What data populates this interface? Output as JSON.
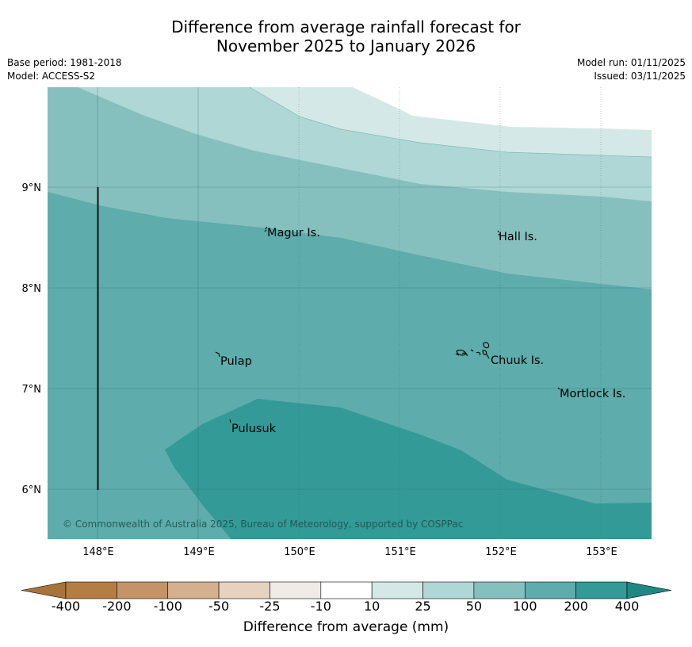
{
  "title": {
    "line1": "Difference from average rainfall forecast for",
    "line2": "November 2025 to January 2026"
  },
  "info_left": {
    "base_period": "Base period: 1981-2018",
    "model": "Model: ACCESS-S2"
  },
  "info_right": {
    "model_run": "Model run: 01/11/2025",
    "issued": "Issued: 03/11/2025"
  },
  "axes": {
    "x_ticks": [
      "148°E",
      "149°E",
      "150°E",
      "151°E",
      "152°E",
      "153°E"
    ],
    "y_ticks": [
      "9°N",
      "8°N",
      "7°N",
      "6°N"
    ]
  },
  "islands": [
    {
      "name": "Magur Is.",
      "lon": 149.67,
      "lat": 8.56
    },
    {
      "name": "Hall Is.",
      "lon": 151.97,
      "lat": 8.52
    },
    {
      "name": "Pulap",
      "lon": 149.18,
      "lat": 7.27
    },
    {
      "name": "Chuuk Is.",
      "lon": 151.85,
      "lat": 7.28
    },
    {
      "name": "Mortlock Is.",
      "lon": 152.58,
      "lat": 6.98
    },
    {
      "name": "Pulusuk",
      "lon": 149.3,
      "lat": 6.63
    }
  ],
  "copyright": "© Commonwealth of Australia 2025, Bureau of Meteorology, supported by COSPPac",
  "colorbar": {
    "title": "Difference from average (mm)",
    "ticks": [
      "-400",
      "-200",
      "-100",
      "-50",
      "-25",
      "-10",
      "10",
      "25",
      "50",
      "100",
      "200",
      "400"
    ],
    "colors": [
      "#a8733a",
      "#b47d43",
      "#c49468",
      "#d4b08e",
      "#e6d2bf",
      "#efece8",
      "#ffffff",
      "#d4e9e7",
      "#aed7d5",
      "#86c0be",
      "#5eacab",
      "#339a97",
      "#1f8784"
    ]
  }
}
